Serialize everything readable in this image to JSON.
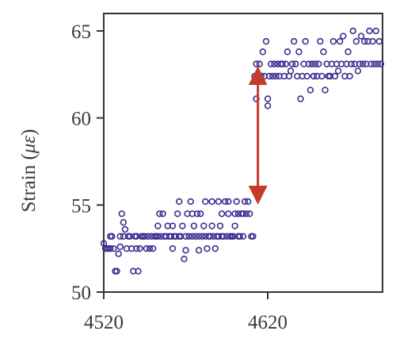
{
  "chart_data": {
    "type": "scatter",
    "title": "",
    "xlabel": "",
    "ylabel": "Strain (",
    "ylabel_symbol": "με",
    "ylabel_close": ")",
    "xlim": [
      4520,
      4690
    ],
    "ylim": [
      50,
      66
    ],
    "xticks": [
      {
        "value": 4520,
        "label": "4520"
      },
      {
        "value": 4620,
        "label": "4620"
      }
    ],
    "yticks": [
      {
        "value": 50,
        "label": "50"
      },
      {
        "value": 55,
        "label": "55"
      },
      {
        "value": 60,
        "label": "60"
      },
      {
        "value": 65,
        "label": "65"
      }
    ],
    "grid": false,
    "colors": {
      "points": "#3b2d8f",
      "arrow": "#c43a2b",
      "axis": "#333333"
    },
    "annotation": {
      "type": "double-arrow",
      "x": 4614,
      "y_from": 55.2,
      "y_to": 62.8
    },
    "series": [
      {
        "points": [
          [
            4520,
            52.8
          ],
          [
            4521,
            52.5
          ],
          [
            4522,
            52.5
          ],
          [
            4523,
            52.5
          ],
          [
            4524,
            53.2
          ],
          [
            4524,
            52.5
          ],
          [
            4525,
            53.2
          ],
          [
            4526,
            52.5
          ],
          [
            4527,
            51.2
          ],
          [
            4528,
            51.2
          ],
          [
            4529,
            52.2
          ],
          [
            4530,
            52.6
          ],
          [
            4530,
            53.2
          ],
          [
            4531,
            54.5
          ],
          [
            4532,
            54.0
          ],
          [
            4532,
            53.2
          ],
          [
            4533,
            53.6
          ],
          [
            4534,
            52.5
          ],
          [
            4535,
            53.2
          ],
          [
            4536,
            53.2
          ],
          [
            4537,
            52.5
          ],
          [
            4538,
            51.2
          ],
          [
            4539,
            53.2
          ],
          [
            4540,
            52.5
          ],
          [
            4540,
            53.2
          ],
          [
            4541,
            51.2
          ],
          [
            4542,
            52.5
          ],
          [
            4543,
            53.2
          ],
          [
            4544,
            53.2
          ],
          [
            4545,
            53.2
          ],
          [
            4546,
            52.5
          ],
          [
            4547,
            53.2
          ],
          [
            4548,
            52.5
          ],
          [
            4549,
            53.2
          ],
          [
            4550,
            52.5
          ],
          [
            4551,
            53.2
          ],
          [
            4552,
            53.2
          ],
          [
            4553,
            53.8
          ],
          [
            4553,
            53.2
          ],
          [
            4554,
            54.5
          ],
          [
            4555,
            53.2
          ],
          [
            4556,
            54.5
          ],
          [
            4557,
            53.2
          ],
          [
            4558,
            53.2
          ],
          [
            4559,
            53.8
          ],
          [
            4560,
            53.2
          ],
          [
            4561,
            53.2
          ],
          [
            4562,
            52.5
          ],
          [
            4562,
            53.8
          ],
          [
            4563,
            53.2
          ],
          [
            4564,
            53.2
          ],
          [
            4565,
            54.5
          ],
          [
            4566,
            53.2
          ],
          [
            4566,
            55.2
          ],
          [
            4567,
            53.2
          ],
          [
            4568,
            53.8
          ],
          [
            4569,
            51.9
          ],
          [
            4570,
            52.4
          ],
          [
            4570,
            53.2
          ],
          [
            4571,
            54.5
          ],
          [
            4572,
            53.2
          ],
          [
            4573,
            55.2
          ],
          [
            4574,
            53.2
          ],
          [
            4574,
            54.5
          ],
          [
            4575,
            53.8
          ],
          [
            4576,
            53.2
          ],
          [
            4577,
            54.5
          ],
          [
            4578,
            52.4
          ],
          [
            4578,
            53.2
          ],
          [
            4579,
            54.5
          ],
          [
            4580,
            53.2
          ],
          [
            4581,
            53.8
          ],
          [
            4582,
            55.2
          ],
          [
            4582,
            53.2
          ],
          [
            4583,
            52.5
          ],
          [
            4584,
            53.2
          ],
          [
            4585,
            53.2
          ],
          [
            4586,
            55.2
          ],
          [
            4586,
            53.8
          ],
          [
            4587,
            53.2
          ],
          [
            4588,
            52.5
          ],
          [
            4589,
            53.2
          ],
          [
            4590,
            55.2
          ],
          [
            4590,
            53.2
          ],
          [
            4591,
            53.8
          ],
          [
            4592,
            54.5
          ],
          [
            4592,
            53.2
          ],
          [
            4593,
            53.2
          ],
          [
            4594,
            55.2
          ],
          [
            4595,
            53.2
          ],
          [
            4596,
            55.2
          ],
          [
            4596,
            54.5
          ],
          [
            4597,
            53.2
          ],
          [
            4598,
            53.2
          ],
          [
            4599,
            53.2
          ],
          [
            4600,
            54.5
          ],
          [
            4600,
            53.8
          ],
          [
            4601,
            55.2
          ],
          [
            4602,
            54.5
          ],
          [
            4602,
            53.2
          ],
          [
            4603,
            53.2
          ],
          [
            4604,
            54.5
          ],
          [
            4605,
            54.5
          ],
          [
            4605,
            53.2
          ],
          [
            4606,
            55.2
          ],
          [
            4607,
            54.5
          ],
          [
            4608,
            55.2
          ],
          [
            4609,
            54.5
          ],
          [
            4610,
            53.2
          ],
          [
            4611,
            53.2
          ],
          [
            4612,
            62.4
          ],
          [
            4613,
            61.1
          ],
          [
            4613,
            63.1
          ],
          [
            4614,
            62.4
          ],
          [
            4615,
            63.1
          ],
          [
            4616,
            62.4
          ],
          [
            4617,
            63.8
          ],
          [
            4618,
            62.4
          ],
          [
            4619,
            64.4
          ],
          [
            4620,
            61.1
          ],
          [
            4620,
            60.7
          ],
          [
            4621,
            62.4
          ],
          [
            4622,
            63.1
          ],
          [
            4623,
            62.4
          ],
          [
            4624,
            63.1
          ],
          [
            4625,
            62.4
          ],
          [
            4626,
            63.1
          ],
          [
            4627,
            62.4
          ],
          [
            4628,
            63.1
          ],
          [
            4629,
            63.1
          ],
          [
            4630,
            62.4
          ],
          [
            4631,
            63.1
          ],
          [
            4632,
            63.8
          ],
          [
            4633,
            62.4
          ],
          [
            4634,
            62.7
          ],
          [
            4635,
            63.1
          ],
          [
            4636,
            64.4
          ],
          [
            4637,
            63.1
          ],
          [
            4638,
            62.4
          ],
          [
            4639,
            63.8
          ],
          [
            4640,
            61.1
          ],
          [
            4641,
            62.4
          ],
          [
            4642,
            63.1
          ],
          [
            4643,
            64.4
          ],
          [
            4644,
            62.4
          ],
          [
            4645,
            63.1
          ],
          [
            4646,
            61.6
          ],
          [
            4647,
            63.1
          ],
          [
            4648,
            62.4
          ],
          [
            4649,
            63.1
          ],
          [
            4650,
            62.4
          ],
          [
            4651,
            63.1
          ],
          [
            4652,
            64.4
          ],
          [
            4653,
            62.4
          ],
          [
            4654,
            63.8
          ],
          [
            4655,
            61.6
          ],
          [
            4656,
            63.1
          ],
          [
            4657,
            62.4
          ],
          [
            4658,
            62.4
          ],
          [
            4659,
            63.1
          ],
          [
            4660,
            64.4
          ],
          [
            4661,
            62.4
          ],
          [
            4662,
            63.1
          ],
          [
            4663,
            62.7
          ],
          [
            4664,
            64.4
          ],
          [
            4665,
            63.1
          ],
          [
            4666,
            64.7
          ],
          [
            4667,
            62.4
          ],
          [
            4668,
            63.1
          ],
          [
            4669,
            63.8
          ],
          [
            4670,
            62.4
          ],
          [
            4671,
            63.1
          ],
          [
            4672,
            65.0
          ],
          [
            4673,
            63.1
          ],
          [
            4674,
            64.4
          ],
          [
            4675,
            62.7
          ],
          [
            4676,
            63.1
          ],
          [
            4677,
            64.7
          ],
          [
            4678,
            63.1
          ],
          [
            4679,
            64.4
          ],
          [
            4680,
            63.1
          ],
          [
            4681,
            64.4
          ],
          [
            4682,
            65.0
          ],
          [
            4683,
            63.1
          ],
          [
            4684,
            64.4
          ],
          [
            4685,
            63.1
          ],
          [
            4686,
            65.0
          ],
          [
            4687,
            63.1
          ],
          [
            4688,
            64.4
          ],
          [
            4689,
            63.1
          ]
        ]
      }
    ]
  }
}
